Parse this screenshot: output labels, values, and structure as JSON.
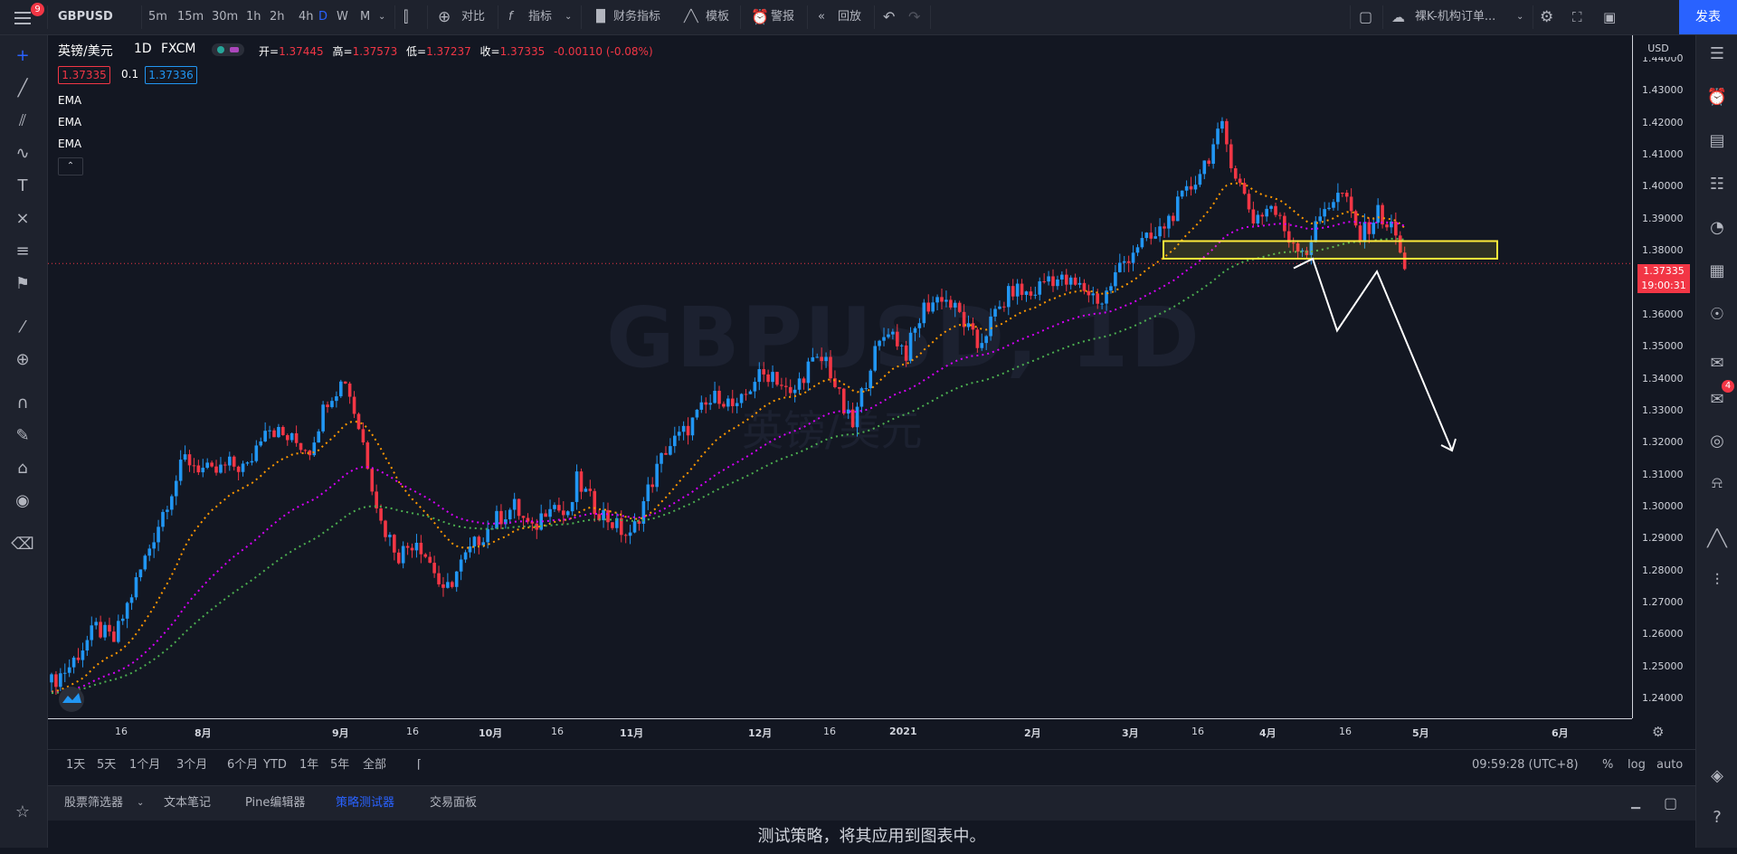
{
  "topbar": {
    "notification_count": "9",
    "symbol": "GBPUSD",
    "intervals": [
      "5m",
      "15m",
      "30m",
      "1h",
      "2h",
      "4h",
      "D",
      "W",
      "M"
    ],
    "active_interval": "D",
    "compare_label": "对比",
    "indicators_label": "指标",
    "financials_label": "财务指标",
    "templates_label": "模板",
    "alerts_label": "警报",
    "replay_label": "回放",
    "layout_name": "裸K-机构订单...",
    "publish_label": "发表"
  },
  "legend": {
    "title": "英镑/美元",
    "interval": "1D",
    "exchange": "FXCM",
    "open_label": "开=",
    "open": "1.37445",
    "high_label": "高=",
    "high": "1.37573",
    "low_label": "低=",
    "low": "1.37237",
    "close_label": "收=",
    "close": "1.37335",
    "change": "-0.00110 (-0.08%)",
    "bid": "1.37335",
    "spread": "0.1",
    "ask": "1.37336",
    "indicators": [
      "EMA",
      "EMA",
      "EMA"
    ]
  },
  "watermark": {
    "symbol": "GBPUSD, 1D",
    "name": "英镑/美元"
  },
  "price_axis": {
    "currency": "USD",
    "ticks": [
      "1.44000",
      "1.43000",
      "1.42000",
      "1.41000",
      "1.40000",
      "1.39000",
      "1.38000",
      "1.37000",
      "1.36000",
      "1.35000",
      "1.34000",
      "1.33000",
      "1.32000",
      "1.31000",
      "1.30000",
      "1.29000",
      "1.28000",
      "1.27000",
      "1.26000",
      "1.25000",
      "1.24000"
    ],
    "current_price": "1.37335",
    "countdown": "19:00:31"
  },
  "time_axis": {
    "labels": [
      "16",
      "8月",
      "9月",
      "16",
      "10月",
      "16",
      "11月",
      "12月",
      "16",
      "2021",
      "2月",
      "3月",
      "16",
      "4月",
      "16",
      "5月",
      "6月"
    ]
  },
  "range_bar": {
    "ranges": [
      "1天",
      "5天",
      "1个月",
      "3个月",
      "6个月",
      "YTD",
      "1年",
      "5年",
      "全部"
    ],
    "clock": "09:59:28 (UTC+8)",
    "percent": "%",
    "log": "log",
    "auto": "auto"
  },
  "bottom_panel": {
    "tabs": [
      "股票筛选器",
      "文本笔记",
      "Pine编辑器",
      "策略测试器",
      "交易面板"
    ],
    "active_tab": "策略测试器",
    "message": "测试策略，将其应用到图表中。"
  },
  "colors": {
    "background": "#131722",
    "up": "#2196f3",
    "down": "#f23645",
    "ema_fast": "#ff9800",
    "ema_mid": "#d500f9",
    "ema_slow": "#4caf50",
    "zone": "#ffeb3b",
    "accent": "#2962ff"
  },
  "chart_data": {
    "type": "candlestick",
    "price_range": [
      1.235,
      1.445
    ],
    "start_date": "2020-07-06",
    "bars_close_hint": [
      1.243,
      1.376
    ],
    "zone": {
      "from": 1.3775,
      "to": 1.383
    },
    "projection": [
      1.3745,
      1.3775,
      1.355,
      1.3735,
      1.3175
    ]
  }
}
